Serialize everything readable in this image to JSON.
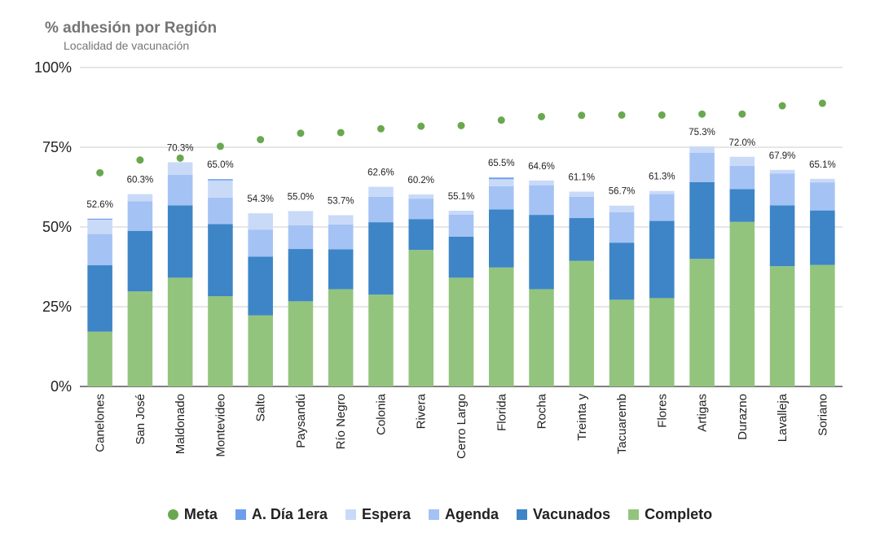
{
  "chart_data": {
    "type": "bar",
    "stacked": true,
    "title": "% adhesión por Región",
    "subtitle": "Localidad de vacunación",
    "ylim": [
      0,
      100
    ],
    "yticks": [
      "0%",
      "25%",
      "50%",
      "75%",
      "100%"
    ],
    "grid": true,
    "legend_position": "bottom",
    "categories": [
      "Canelones",
      "San José",
      "Maldonado",
      "Montevideo",
      "Salto",
      "Paysandú",
      "Río Negro",
      "Colonia",
      "Rivera",
      "Cerro Largo",
      "Florida",
      "Rocha",
      "Treinta y",
      "Tacuaremb",
      "Flores",
      "Artigas",
      "Durazno",
      "Lavalleja",
      "Soriano"
    ],
    "series": [
      {
        "name": "Completo",
        "color": "#93c47d",
        "values": [
          17.2,
          29.8,
          34.1,
          28.3,
          22.3,
          26.7,
          30.5,
          28.8,
          42.8,
          34.1,
          37.3,
          30.5,
          39.4,
          27.2,
          27.7,
          40.0,
          51.6,
          37.7,
          38.1
        ]
      },
      {
        "name": "Vacunados",
        "color": "#3d85c6",
        "values": [
          20.8,
          19.0,
          22.7,
          22.6,
          18.4,
          16.4,
          12.5,
          22.7,
          9.7,
          12.9,
          18.2,
          23.3,
          13.4,
          17.9,
          24.2,
          24.1,
          10.3,
          19.1,
          17.1
        ]
      },
      {
        "name": "Agenda",
        "color": "#a4c2f4",
        "values": [
          9.8,
          9.3,
          9.6,
          8.3,
          8.5,
          7.4,
          7.8,
          8.0,
          6.4,
          6.9,
          7.3,
          9.3,
          6.7,
          9.5,
          8.4,
          9.2,
          7.3,
          10.0,
          8.8
        ]
      },
      {
        "name": "Espera",
        "color": "#c9daf8",
        "values": [
          4.5,
          2.2,
          3.9,
          5.4,
          5.1,
          4.5,
          2.9,
          3.1,
          1.3,
          1.2,
          2.2,
          1.5,
          1.6,
          2.1,
          1.0,
          2.0,
          2.8,
          1.1,
          1.1
        ]
      },
      {
        "name": "A. Día 1era",
        "color": "#6d9eeb",
        "values": [
          0.3,
          0.0,
          0.0,
          0.4,
          0.0,
          0.0,
          0.0,
          0.0,
          0.0,
          0.0,
          0.5,
          0.0,
          0.0,
          0.0,
          0.0,
          0.0,
          0.0,
          0.0,
          0.0
        ]
      }
    ],
    "totals_labels": [
      "52.6%",
      "60.3%",
      "70.3%",
      "65.0%",
      "54.3%",
      "55.0%",
      "53.7%",
      "62.6%",
      "60.2%",
      "55.1%",
      "65.5%",
      "64.6%",
      "61.1%",
      "56.7%",
      "61.3%",
      "75.3%",
      "72.0%",
      "67.9%",
      "65.1%"
    ],
    "totals": [
      52.6,
      60.3,
      70.3,
      65.0,
      54.3,
      55.0,
      53.7,
      62.6,
      60.2,
      55.1,
      65.5,
      64.6,
      61.1,
      56.7,
      61.3,
      75.3,
      72.0,
      67.9,
      65.1
    ],
    "meta": {
      "name": "Meta",
      "color": "#6aa84f",
      "values": [
        67.0,
        71.0,
        71.6,
        75.3,
        77.4,
        79.4,
        79.6,
        80.8,
        81.6,
        81.8,
        83.5,
        84.6,
        85.0,
        85.1,
        85.1,
        85.4,
        85.4,
        88.0,
        88.8
      ]
    },
    "legend": [
      {
        "label": "Meta",
        "color": "#6aa84f",
        "shape": "dot"
      },
      {
        "label": "A. Día 1era",
        "color": "#6d9eeb",
        "shape": "square"
      },
      {
        "label": "Espera",
        "color": "#c9daf8",
        "shape": "square"
      },
      {
        "label": "Agenda",
        "color": "#a4c2f4",
        "shape": "square"
      },
      {
        "label": "Vacunados",
        "color": "#3d85c6",
        "shape": "square"
      },
      {
        "label": "Completo",
        "color": "#93c47d",
        "shape": "square"
      }
    ]
  }
}
